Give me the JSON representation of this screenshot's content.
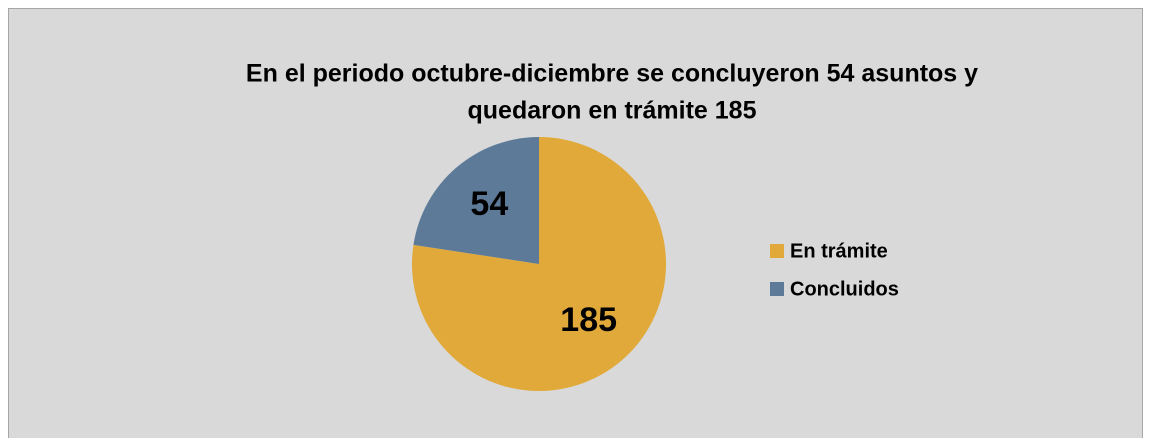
{
  "chart_data": {
    "type": "pie",
    "title": [
      "En el periodo octubre-diciembre se concluyeron 54 asuntos y",
      "quedaron en trámite 185"
    ],
    "categories": [
      "En trámite",
      "Concluidos"
    ],
    "values": [
      185,
      54
    ],
    "colors": [
      "#e0a93a",
      "#5d7b99"
    ],
    "legend": "right"
  }
}
